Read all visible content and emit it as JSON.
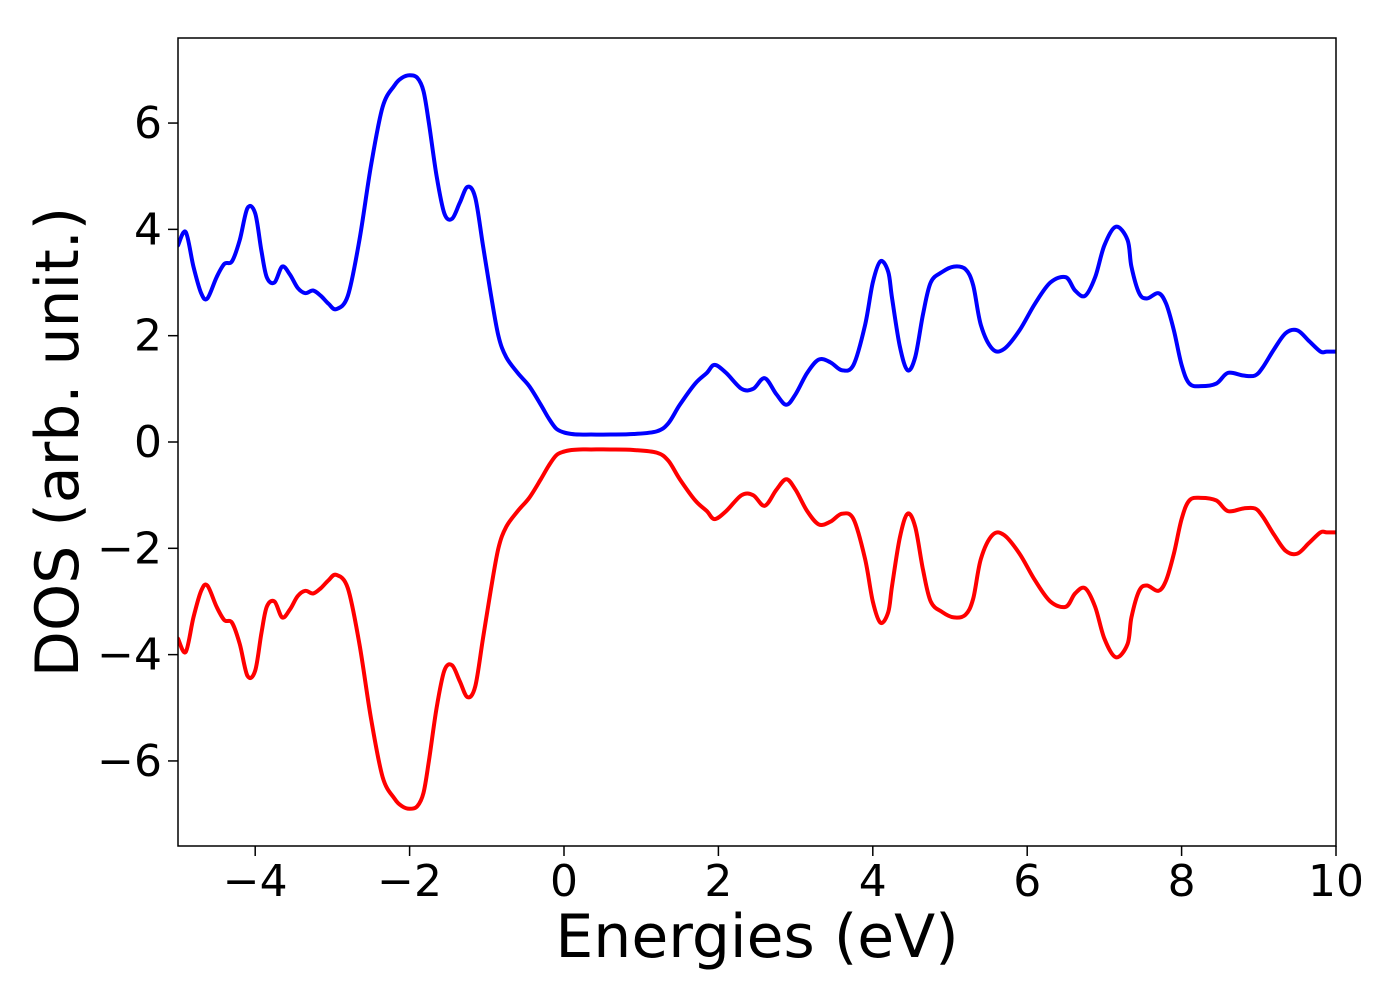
{
  "chart_data": {
    "type": "line",
    "title": "",
    "xlabel": "Energies (eV)",
    "ylabel": "DOS (arb. unit.)",
    "xlim": [
      -5,
      10
    ],
    "ylim": [
      -7.6,
      7.6
    ],
    "grid": false,
    "legend": "none",
    "xticks": [
      {
        "value": -4,
        "label": "−4"
      },
      {
        "value": -2,
        "label": "−2"
      },
      {
        "value": 0,
        "label": "0"
      },
      {
        "value": 2,
        "label": "2"
      },
      {
        "value": 4,
        "label": "4"
      },
      {
        "value": 6,
        "label": "6"
      },
      {
        "value": 8,
        "label": "8"
      },
      {
        "value": 10,
        "label": "10"
      }
    ],
    "yticks": [
      {
        "value": -6,
        "label": "−6"
      },
      {
        "value": -4,
        "label": "−4"
      },
      {
        "value": -2,
        "label": "−2"
      },
      {
        "value": 0,
        "label": "0"
      },
      {
        "value": 2,
        "label": "2"
      },
      {
        "value": 4,
        "label": "4"
      },
      {
        "value": 6,
        "label": "6"
      }
    ],
    "series": [
      {
        "color": "#0000ff",
        "x": [
          -5.0,
          -4.9,
          -4.8,
          -4.7,
          -4.62,
          -4.5,
          -4.4,
          -4.3,
          -4.2,
          -4.1,
          -4.0,
          -3.92,
          -3.85,
          -3.75,
          -3.65,
          -3.55,
          -3.45,
          -3.35,
          -3.25,
          -3.15,
          -3.05,
          -2.95,
          -2.8,
          -2.65,
          -2.5,
          -2.35,
          -2.2,
          -2.1,
          -2.0,
          -1.9,
          -1.82,
          -1.75,
          -1.65,
          -1.55,
          -1.45,
          -1.35,
          -1.25,
          -1.15,
          -1.05,
          -0.95,
          -0.85,
          -0.75,
          -0.6,
          -0.45,
          -0.3,
          -0.2,
          -0.1,
          0.0,
          0.1,
          0.2,
          0.35,
          0.6,
          0.9,
          1.2,
          1.35,
          1.5,
          1.7,
          1.85,
          1.95,
          2.1,
          2.3,
          2.45,
          2.6,
          2.75,
          2.88,
          3.0,
          3.15,
          3.3,
          3.45,
          3.6,
          3.75,
          3.9,
          4.0,
          4.1,
          4.2,
          4.25,
          4.35,
          4.45,
          4.55,
          4.65,
          4.75,
          4.9,
          5.05,
          5.2,
          5.3,
          5.4,
          5.55,
          5.7,
          5.9,
          6.1,
          6.3,
          6.5,
          6.62,
          6.75,
          6.88,
          7.0,
          7.15,
          7.3,
          7.35,
          7.45,
          7.55,
          7.7,
          7.8,
          7.9,
          8.0,
          8.1,
          8.25,
          8.45,
          8.6,
          8.8,
          8.95,
          9.05,
          9.2,
          9.35,
          9.5,
          9.65,
          9.8,
          9.88,
          10.0
        ],
        "values": [
          3.7,
          3.95,
          3.3,
          2.8,
          2.7,
          3.1,
          3.35,
          3.4,
          3.8,
          4.4,
          4.3,
          3.6,
          3.1,
          3.0,
          3.3,
          3.15,
          2.9,
          2.8,
          2.85,
          2.75,
          2.6,
          2.5,
          2.75,
          3.8,
          5.2,
          6.3,
          6.7,
          6.85,
          6.9,
          6.85,
          6.6,
          6.0,
          5.0,
          4.3,
          4.2,
          4.5,
          4.8,
          4.6,
          3.7,
          2.8,
          2.0,
          1.6,
          1.3,
          1.05,
          0.7,
          0.45,
          0.25,
          0.18,
          0.15,
          0.14,
          0.14,
          0.14,
          0.15,
          0.2,
          0.35,
          0.7,
          1.1,
          1.3,
          1.45,
          1.3,
          1.0,
          1.0,
          1.2,
          0.9,
          0.7,
          0.9,
          1.3,
          1.55,
          1.5,
          1.35,
          1.45,
          2.2,
          3.0,
          3.4,
          3.2,
          2.7,
          1.8,
          1.35,
          1.6,
          2.4,
          3.0,
          3.2,
          3.3,
          3.25,
          2.95,
          2.2,
          1.75,
          1.75,
          2.1,
          2.6,
          3.0,
          3.1,
          2.85,
          2.75,
          3.1,
          3.7,
          4.05,
          3.8,
          3.3,
          2.8,
          2.7,
          2.8,
          2.6,
          2.1,
          1.45,
          1.1,
          1.05,
          1.1,
          1.3,
          1.25,
          1.25,
          1.4,
          1.75,
          2.05,
          2.1,
          1.9,
          1.7,
          1.7,
          1.7
        ]
      },
      {
        "color": "#ff0000",
        "x": [
          -5.0,
          -4.9,
          -4.8,
          -4.7,
          -4.62,
          -4.5,
          -4.4,
          -4.3,
          -4.2,
          -4.1,
          -4.0,
          -3.92,
          -3.85,
          -3.75,
          -3.65,
          -3.55,
          -3.45,
          -3.35,
          -3.25,
          -3.15,
          -3.05,
          -2.95,
          -2.8,
          -2.65,
          -2.5,
          -2.35,
          -2.2,
          -2.1,
          -2.0,
          -1.9,
          -1.82,
          -1.75,
          -1.65,
          -1.55,
          -1.45,
          -1.35,
          -1.25,
          -1.15,
          -1.05,
          -0.95,
          -0.85,
          -0.75,
          -0.6,
          -0.45,
          -0.3,
          -0.2,
          -0.1,
          0.0,
          0.1,
          0.2,
          0.35,
          0.6,
          0.9,
          1.2,
          1.35,
          1.5,
          1.7,
          1.85,
          1.95,
          2.1,
          2.3,
          2.45,
          2.6,
          2.75,
          2.88,
          3.0,
          3.15,
          3.3,
          3.45,
          3.6,
          3.75,
          3.9,
          4.0,
          4.1,
          4.2,
          4.25,
          4.35,
          4.45,
          4.55,
          4.65,
          4.75,
          4.9,
          5.05,
          5.2,
          5.3,
          5.4,
          5.55,
          5.7,
          5.9,
          6.1,
          6.3,
          6.5,
          6.62,
          6.75,
          6.88,
          7.0,
          7.15,
          7.3,
          7.35,
          7.45,
          7.55,
          7.7,
          7.8,
          7.9,
          8.0,
          8.1,
          8.25,
          8.45,
          8.6,
          8.8,
          8.95,
          9.05,
          9.2,
          9.35,
          9.5,
          9.65,
          9.8,
          9.88,
          10.0
        ],
        "values": [
          -3.7,
          -3.95,
          -3.3,
          -2.8,
          -2.7,
          -3.1,
          -3.35,
          -3.4,
          -3.8,
          -4.4,
          -4.3,
          -3.6,
          -3.1,
          -3.0,
          -3.3,
          -3.15,
          -2.9,
          -2.8,
          -2.85,
          -2.75,
          -2.6,
          -2.5,
          -2.75,
          -3.8,
          -5.2,
          -6.3,
          -6.7,
          -6.85,
          -6.9,
          -6.85,
          -6.6,
          -6.0,
          -5.0,
          -4.3,
          -4.2,
          -4.5,
          -4.8,
          -4.6,
          -3.7,
          -2.8,
          -2.0,
          -1.6,
          -1.3,
          -1.05,
          -0.7,
          -0.45,
          -0.25,
          -0.18,
          -0.15,
          -0.14,
          -0.14,
          -0.14,
          -0.15,
          -0.2,
          -0.35,
          -0.7,
          -1.1,
          -1.3,
          -1.45,
          -1.3,
          -1.0,
          -1.0,
          -1.2,
          -0.9,
          -0.7,
          -0.9,
          -1.3,
          -1.55,
          -1.5,
          -1.35,
          -1.45,
          -2.2,
          -3.0,
          -3.4,
          -3.2,
          -2.7,
          -1.8,
          -1.35,
          -1.6,
          -2.4,
          -3.0,
          -3.2,
          -3.3,
          -3.25,
          -2.95,
          -2.2,
          -1.75,
          -1.75,
          -2.1,
          -2.6,
          -3.0,
          -3.1,
          -2.85,
          -2.75,
          -3.1,
          -3.7,
          -4.05,
          -3.8,
          -3.3,
          -2.8,
          -2.7,
          -2.8,
          -2.6,
          -2.1,
          -1.45,
          -1.1,
          -1.05,
          -1.1,
          -1.3,
          -1.25,
          -1.25,
          -1.4,
          -1.75,
          -2.05,
          -2.1,
          -1.9,
          -1.7,
          -1.7,
          -1.7
        ]
      }
    ]
  }
}
